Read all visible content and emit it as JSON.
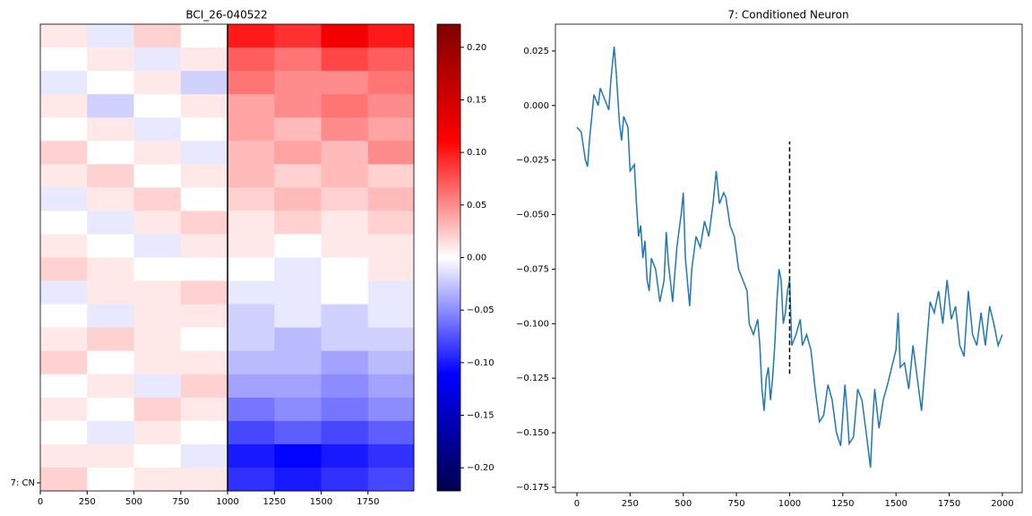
{
  "chart_data": [
    {
      "type": "heatmap",
      "title": "BCI_26-040522",
      "colormap": "seismic",
      "x_edges": [
        0,
        250,
        500,
        750,
        1000,
        1250,
        1500,
        1750,
        1995
      ],
      "xlim": [
        0,
        1995
      ],
      "xticks": [
        0,
        250,
        500,
        750,
        1000,
        1250,
        1500,
        1750
      ],
      "row_labels": [
        null,
        null,
        null,
        null,
        null,
        null,
        null,
        null,
        null,
        null,
        null,
        null,
        null,
        null,
        null,
        null,
        null,
        null,
        null,
        "7: CN"
      ],
      "values": [
        [
          0.01,
          -0.01,
          0.02,
          0.0,
          0.1,
          0.09,
          0.12,
          0.1
        ],
        [
          0.0,
          0.01,
          -0.01,
          0.01,
          0.07,
          0.06,
          0.08,
          0.07
        ],
        [
          -0.01,
          0.0,
          0.01,
          -0.02,
          0.06,
          0.05,
          0.05,
          0.06
        ],
        [
          0.01,
          -0.02,
          0.0,
          0.01,
          0.04,
          0.05,
          0.06,
          0.05
        ],
        [
          0.0,
          0.01,
          -0.01,
          0.0,
          0.04,
          0.03,
          0.05,
          0.04
        ],
        [
          0.02,
          0.0,
          0.01,
          -0.01,
          0.03,
          0.04,
          0.03,
          0.05
        ],
        [
          0.01,
          0.02,
          0.0,
          0.01,
          0.03,
          0.02,
          0.03,
          0.02
        ],
        [
          -0.01,
          0.01,
          0.02,
          0.0,
          0.02,
          0.03,
          0.02,
          0.03
        ],
        [
          0.0,
          -0.01,
          0.01,
          0.02,
          0.01,
          0.02,
          0.01,
          0.02
        ],
        [
          0.01,
          0.0,
          -0.01,
          0.01,
          0.01,
          0.0,
          0.01,
          0.01
        ],
        [
          0.02,
          0.01,
          0.0,
          0.0,
          0.0,
          -0.01,
          0.0,
          0.01
        ],
        [
          -0.01,
          0.01,
          0.01,
          0.02,
          -0.01,
          -0.01,
          0.0,
          -0.01
        ],
        [
          0.0,
          -0.01,
          0.01,
          0.01,
          -0.02,
          -0.01,
          -0.02,
          -0.01
        ],
        [
          0.01,
          0.02,
          0.01,
          0.0,
          -0.02,
          -0.03,
          -0.02,
          -0.02
        ],
        [
          0.02,
          0.0,
          0.01,
          0.01,
          -0.03,
          -0.03,
          -0.04,
          -0.03
        ],
        [
          0.0,
          0.01,
          -0.01,
          0.02,
          -0.04,
          -0.04,
          -0.05,
          -0.04
        ],
        [
          0.01,
          0.0,
          0.02,
          0.01,
          -0.06,
          -0.05,
          -0.06,
          -0.05
        ],
        [
          0.0,
          -0.01,
          0.01,
          0.0,
          -0.08,
          -0.07,
          -0.08,
          -0.07
        ],
        [
          0.01,
          0.01,
          0.0,
          -0.01,
          -0.1,
          -0.11,
          -0.1,
          -0.09
        ],
        [
          0.02,
          0.0,
          0.01,
          0.01,
          -0.09,
          -0.1,
          -0.09,
          -0.08
        ]
      ],
      "vline": {
        "x": 1000,
        "color": "#000000"
      },
      "clim": [
        -0.222,
        0.222
      ],
      "cticks": [
        {
          "value": -0.2,
          "label": "−0.20"
        },
        {
          "value": -0.15,
          "label": "−0.15"
        },
        {
          "value": -0.1,
          "label": "−0.10"
        },
        {
          "value": -0.05,
          "label": "−0.05"
        },
        {
          "value": 0,
          "label": "0.00"
        },
        {
          "value": 0.05,
          "label": "0.05"
        },
        {
          "value": 0.1,
          "label": "0.10"
        },
        {
          "value": 0.15,
          "label": "0.15"
        },
        {
          "value": 0.2,
          "label": "0.20"
        }
      ]
    },
    {
      "type": "line",
      "title": "7: Conditioned Neuron",
      "x": [
        0,
        20,
        40,
        50,
        60,
        70,
        80,
        100,
        110,
        130,
        150,
        160,
        170,
        175,
        185,
        200,
        210,
        220,
        240,
        250,
        270,
        280,
        290,
        300,
        310,
        320,
        330,
        340,
        350,
        370,
        390,
        410,
        420,
        430,
        450,
        470,
        490,
        500,
        510,
        530,
        540,
        560,
        580,
        600,
        620,
        640,
        655,
        670,
        690,
        700,
        720,
        740,
        760,
        780,
        800,
        810,
        830,
        850,
        860,
        870,
        880,
        890,
        900,
        910,
        920,
        930,
        940,
        950,
        960,
        970,
        980,
        990,
        1000,
        1010,
        1030,
        1050,
        1060,
        1080,
        1100,
        1120,
        1140,
        1160,
        1180,
        1200,
        1220,
        1240,
        1260,
        1270,
        1280,
        1300,
        1320,
        1340,
        1360,
        1380,
        1390,
        1400,
        1420,
        1440,
        1460,
        1480,
        1500,
        1510,
        1520,
        1540,
        1560,
        1580,
        1600,
        1620,
        1640,
        1660,
        1680,
        1700,
        1720,
        1740,
        1760,
        1780,
        1800,
        1820,
        1840,
        1860,
        1880,
        1900,
        1920,
        1940,
        1960,
        1980,
        2000
      ],
      "series": [
        {
          "color": "#1f77b4",
          "values": [
            -0.01,
            -0.012,
            -0.025,
            -0.028,
            -0.015,
            -0.005,
            0.005,
            0.0,
            0.008,
            0.003,
            -0.002,
            0.012,
            0.022,
            0.027,
            0.015,
            -0.008,
            -0.016,
            -0.005,
            -0.01,
            -0.03,
            -0.027,
            -0.045,
            -0.06,
            -0.055,
            -0.07,
            -0.062,
            -0.08,
            -0.085,
            -0.07,
            -0.075,
            -0.09,
            -0.08,
            -0.058,
            -0.072,
            -0.09,
            -0.065,
            -0.05,
            -0.04,
            -0.07,
            -0.092,
            -0.075,
            -0.06,
            -0.065,
            -0.053,
            -0.06,
            -0.045,
            -0.03,
            -0.045,
            -0.04,
            -0.042,
            -0.055,
            -0.06,
            -0.075,
            -0.08,
            -0.085,
            -0.1,
            -0.105,
            -0.098,
            -0.11,
            -0.13,
            -0.14,
            -0.125,
            -0.12,
            -0.135,
            -0.125,
            -0.11,
            -0.09,
            -0.075,
            -0.08,
            -0.1,
            -0.095,
            -0.085,
            -0.08,
            -0.11,
            -0.105,
            -0.098,
            -0.11,
            -0.105,
            -0.112,
            -0.13,
            -0.145,
            -0.142,
            -0.128,
            -0.135,
            -0.15,
            -0.156,
            -0.128,
            -0.14,
            -0.155,
            -0.152,
            -0.13,
            -0.135,
            -0.15,
            -0.166,
            -0.145,
            -0.13,
            -0.148,
            -0.135,
            -0.128,
            -0.12,
            -0.112,
            -0.095,
            -0.12,
            -0.118,
            -0.13,
            -0.11,
            -0.125,
            -0.14,
            -0.115,
            -0.09,
            -0.095,
            -0.085,
            -0.1,
            -0.08,
            -0.098,
            -0.092,
            -0.11,
            -0.115,
            -0.085,
            -0.105,
            -0.11,
            -0.095,
            -0.11,
            -0.092,
            -0.1,
            -0.11,
            -0.105
          ]
        }
      ],
      "vline": {
        "x": 1000,
        "ymin": -0.123,
        "ymax": -0.0165,
        "color": "#000000",
        "dashed": true
      },
      "xlim": [
        -101,
        2093
      ],
      "xticks": [
        0,
        250,
        500,
        750,
        1000,
        1250,
        1500,
        1750,
        2000
      ],
      "ylim": [
        -0.1775,
        0.0373
      ],
      "yticks": [
        {
          "value": -0.175,
          "label": "−0.175"
        },
        {
          "value": -0.15,
          "label": "−0.150"
        },
        {
          "value": -0.125,
          "label": "−0.125"
        },
        {
          "value": -0.1,
          "label": "−0.100"
        },
        {
          "value": -0.075,
          "label": "−0.075"
        },
        {
          "value": -0.05,
          "label": "−0.050"
        },
        {
          "value": -0.025,
          "label": "−0.025"
        },
        {
          "value": 0,
          "label": "0.000"
        },
        {
          "value": 0.025,
          "label": "0.025"
        }
      ]
    }
  ]
}
